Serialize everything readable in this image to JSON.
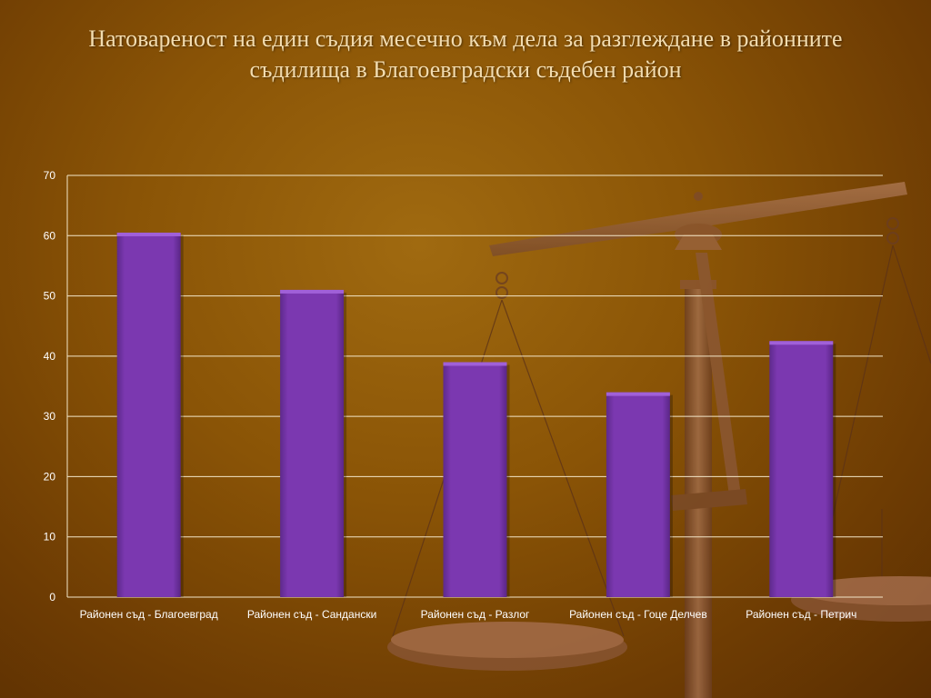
{
  "slide": {
    "title": "Натовареност  на един съдия месечно към дела за разглеждане в районните съдилища в Благоевградски съдебен район"
  },
  "decoration": {
    "icon": "scales-of-justice-icon"
  },
  "colors": {
    "bar": "#7b38b0",
    "bar_top": "#a060d8",
    "grid": "#f3e6c8",
    "tick_text": "#ffffff"
  },
  "chart_data": {
    "type": "bar",
    "title": "",
    "xlabel": "",
    "ylabel": "",
    "categories": [
      "Районен съд - Благоевград",
      "Районен съд - Сандански",
      "Районен съд - Разлог",
      "Районен съд - Гоце Делчев",
      "Районен съд - Петрич"
    ],
    "values": [
      60.5,
      51,
      39,
      34,
      42.5
    ],
    "ylim": [
      0,
      70
    ],
    "yticks": [
      0,
      10,
      20,
      30,
      40,
      50,
      60,
      70
    ],
    "grid": true,
    "legend": "none"
  }
}
